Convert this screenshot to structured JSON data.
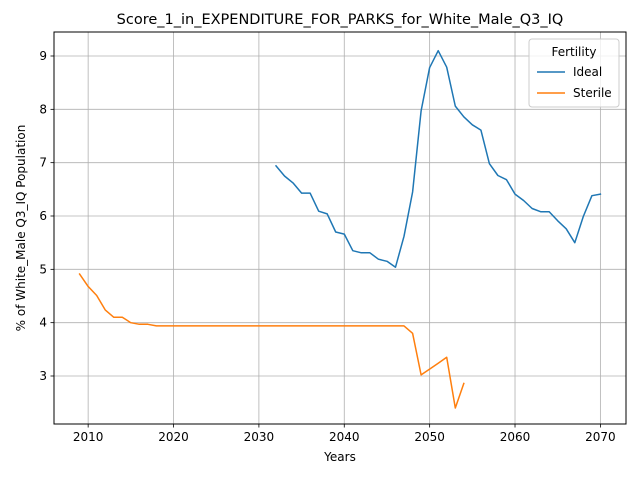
{
  "chart_data": {
    "type": "line",
    "title": "Score_1_in_EXPENDITURE_FOR_PARKS_for_White_Male_Q3_IQ",
    "xlabel": "Years",
    "ylabel": "% of White_Male Q3_IQ Population",
    "xlim": [
      2006,
      2073
    ],
    "ylim": [
      2.1,
      9.45
    ],
    "xticks": [
      2010,
      2020,
      2030,
      2040,
      2050,
      2060,
      2070
    ],
    "yticks": [
      3,
      4,
      5,
      6,
      7,
      8,
      9
    ],
    "grid": true,
    "legend": {
      "title": "Fertility",
      "placement": "top-right"
    },
    "series": [
      {
        "name": "Ideal",
        "color": "#1f77b4",
        "x": [
          2032,
          2033,
          2034,
          2035,
          2036,
          2037,
          2038,
          2039,
          2040,
          2041,
          2042,
          2043,
          2044,
          2045,
          2046,
          2047,
          2048,
          2049,
          2050,
          2051,
          2052,
          2053,
          2054,
          2055,
          2056,
          2057,
          2058,
          2059,
          2060,
          2061,
          2062,
          2063,
          2064,
          2065,
          2066,
          2067,
          2068,
          2069,
          2070
        ],
        "y": [
          6.94,
          6.75,
          6.62,
          6.43,
          6.43,
          6.09,
          6.04,
          5.7,
          5.66,
          5.35,
          5.31,
          5.31,
          5.19,
          5.15,
          5.04,
          5.62,
          6.45,
          7.97,
          8.78,
          9.1,
          8.79,
          8.06,
          7.86,
          7.71,
          7.61,
          6.98,
          6.76,
          6.68,
          6.41,
          6.29,
          6.14,
          6.08,
          6.08,
          5.91,
          5.76,
          5.5,
          5.99,
          6.38,
          6.41
        ]
      },
      {
        "name": "Sterile",
        "color": "#ff7f0e",
        "x": [
          2009,
          2010,
          2011,
          2012,
          2013,
          2014,
          2015,
          2016,
          2017,
          2018,
          2019,
          2020,
          2021,
          2022,
          2023,
          2024,
          2025,
          2026,
          2027,
          2028,
          2029,
          2030,
          2031,
          2032,
          2033,
          2034,
          2035,
          2036,
          2037,
          2038,
          2039,
          2040,
          2041,
          2042,
          2043,
          2044,
          2045,
          2046,
          2047,
          2048,
          2049,
          2050,
          2051,
          2052,
          2053,
          2054
        ],
        "y": [
          4.91,
          4.68,
          4.51,
          4.24,
          4.1,
          4.1,
          4.0,
          3.97,
          3.97,
          3.94,
          3.94,
          3.94,
          3.94,
          3.94,
          3.94,
          3.94,
          3.94,
          3.94,
          3.94,
          3.94,
          3.94,
          3.94,
          3.94,
          3.94,
          3.94,
          3.94,
          3.94,
          3.94,
          3.94,
          3.94,
          3.94,
          3.94,
          3.94,
          3.94,
          3.94,
          3.94,
          3.94,
          3.94,
          3.94,
          3.8,
          3.02,
          3.13,
          3.24,
          3.35,
          2.4,
          2.86
        ]
      }
    ]
  }
}
